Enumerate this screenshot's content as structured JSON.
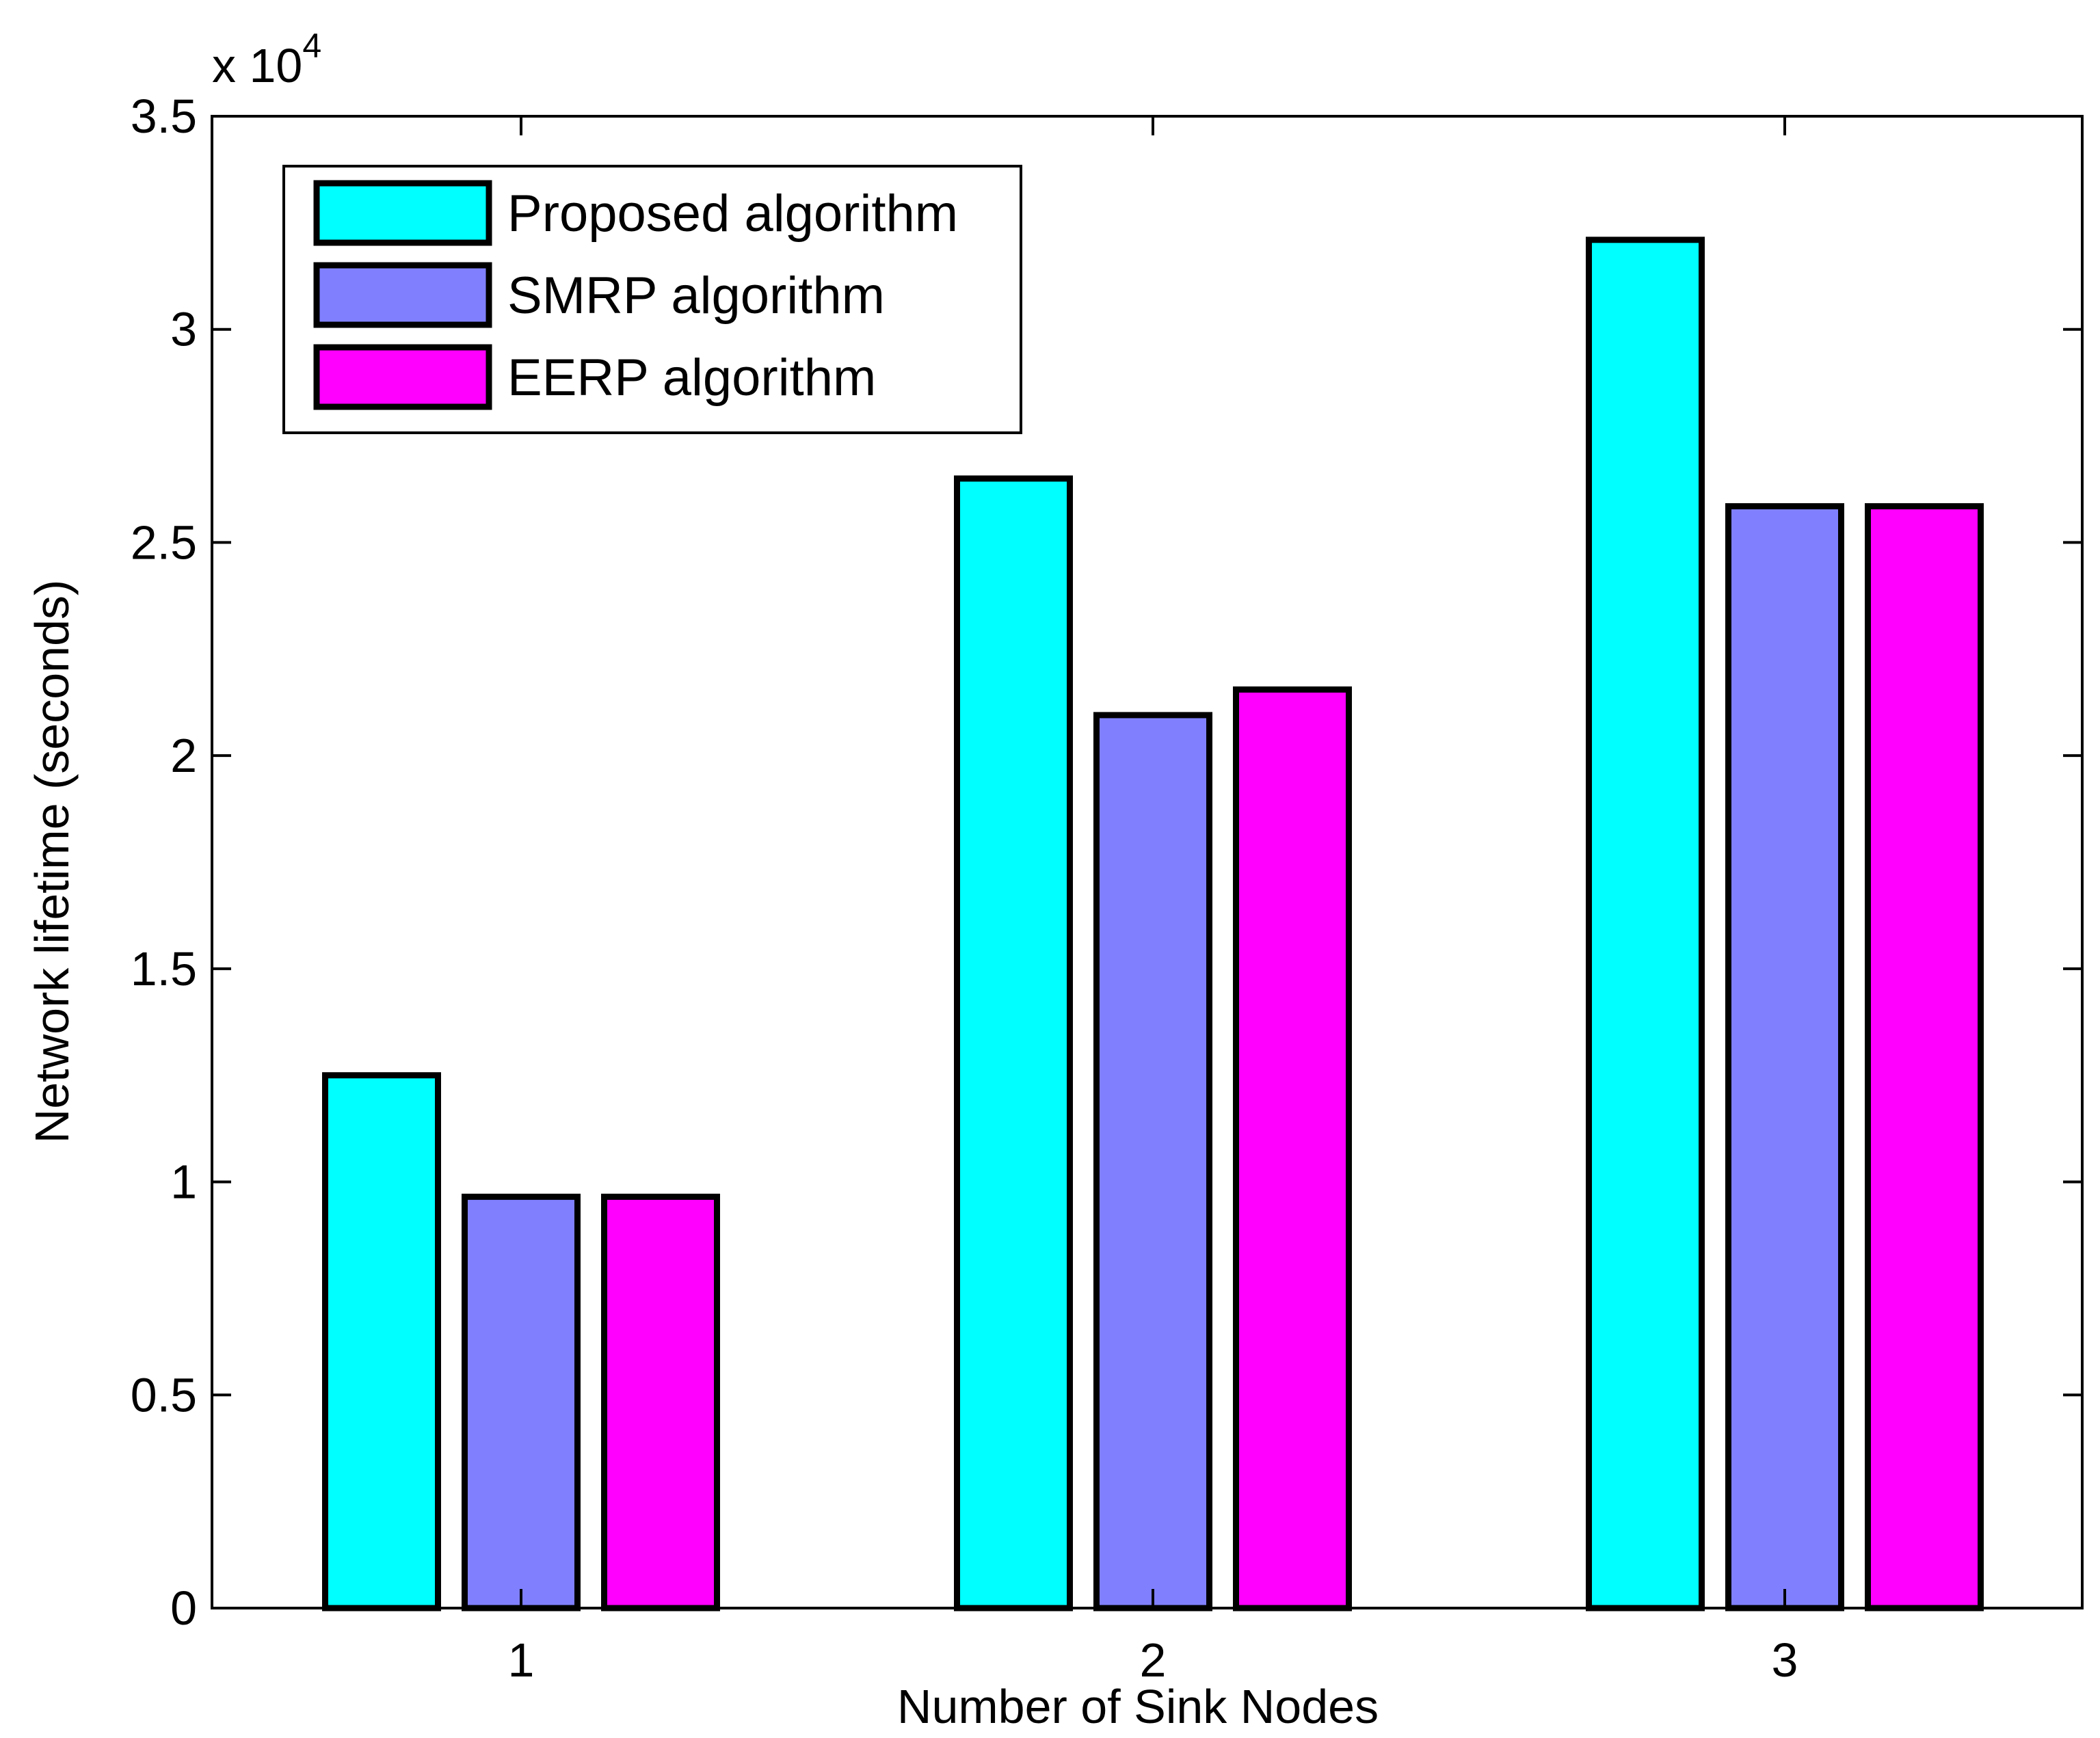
{
  "chart_data": {
    "type": "bar",
    "title": "",
    "xlabel": "Number of Sink Nodes",
    "ylabel": "Network lifetime (seconds)",
    "exponent_label": {
      "base": "x 10",
      "power": "4"
    },
    "categories": [
      "1",
      "2",
      "3"
    ],
    "ylim": [
      0,
      35000
    ],
    "y_ticks": [
      0,
      5000,
      10000,
      15000,
      20000,
      25000,
      30000,
      35000
    ],
    "y_tick_labels": [
      "0",
      "0.5",
      "1",
      "1.5",
      "2",
      "2.5",
      "3",
      "3.5"
    ],
    "grid": false,
    "legend_position": "top-left",
    "series": [
      {
        "name": "Proposed algorithm",
        "color": "#00FFFF",
        "values": [
          12500,
          26500,
          32100
        ]
      },
      {
        "name": "SMRP algorithm",
        "color": "#8080FF",
        "values": [
          9650,
          20950,
          25850
        ]
      },
      {
        "name": "EERP algorithm",
        "color": "#FF00FF",
        "values": [
          9650,
          21550,
          25850
        ]
      }
    ]
  }
}
